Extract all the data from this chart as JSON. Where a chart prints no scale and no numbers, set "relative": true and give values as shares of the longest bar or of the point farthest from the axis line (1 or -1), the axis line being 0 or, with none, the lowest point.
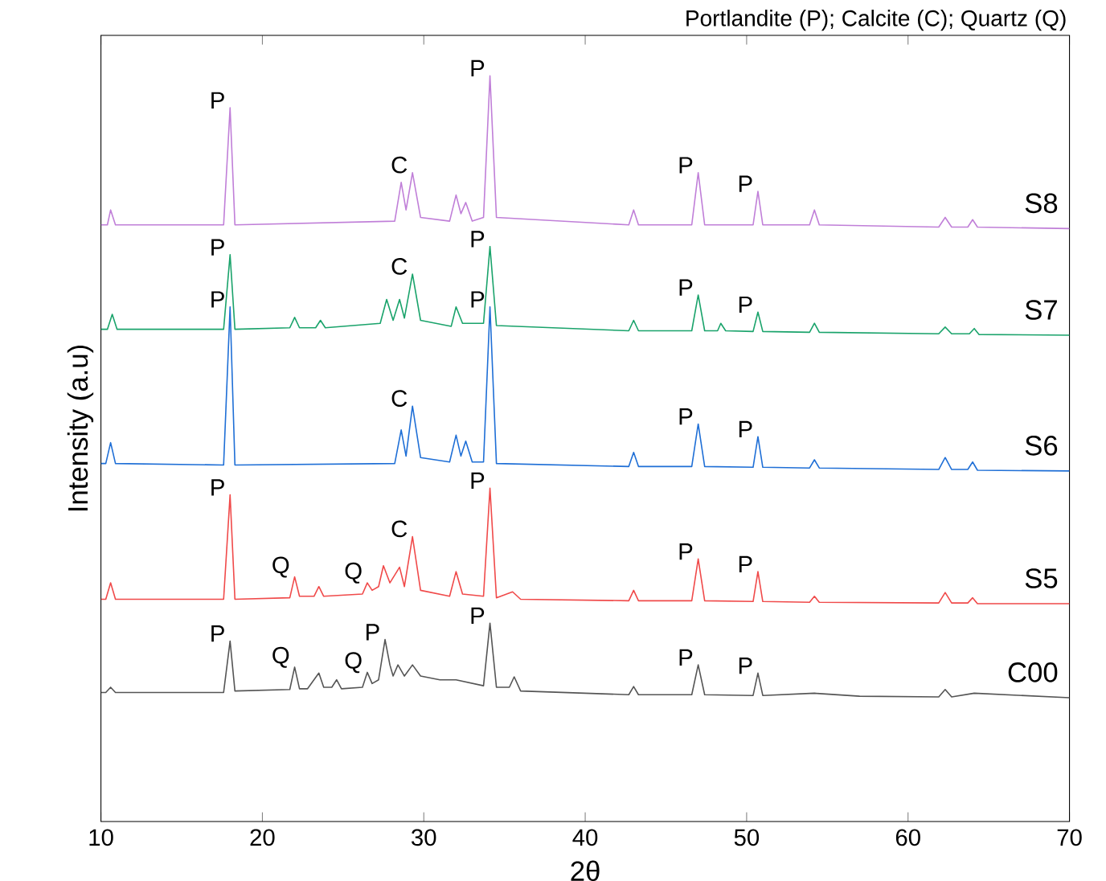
{
  "chart_data": {
    "type": "line",
    "title": "Portlandite (P); Calcite (C); Quartz (Q)",
    "xlabel": "2θ",
    "ylabel": "Intensity (a.u)",
    "relative": true,
    "legend": false,
    "grid": false,
    "marker": "none",
    "xlim": [
      10,
      70
    ],
    "xticks": [
      10,
      20,
      30,
      40,
      50,
      60,
      70
    ],
    "series": [
      {
        "name": "S8",
        "color": "#c07fd8",
        "x": [
          10,
          10.4,
          10.6,
          10.9,
          17.6,
          18,
          18.3,
          28.2,
          28.6,
          28.9,
          29.3,
          29.8,
          31.6,
          32,
          32.3,
          32.6,
          33,
          33.7,
          34.1,
          34.5,
          42.7,
          43,
          43.3,
          46.6,
          47,
          47.4,
          50.4,
          50.7,
          51,
          53.9,
          54.2,
          54.5,
          61.9,
          62.3,
          62.7,
          63.7,
          64,
          64.3,
          70
        ],
        "values": [
          0.8,
          0.8,
          0.82,
          0.8,
          0.8,
          0.957,
          0.8,
          0.805,
          0.857,
          0.82,
          0.87,
          0.81,
          0.805,
          0.84,
          0.815,
          0.83,
          0.805,
          0.81,
          1.0,
          0.81,
          0.8,
          0.82,
          0.8,
          0.8,
          0.87,
          0.8,
          0.8,
          0.845,
          0.8,
          0.8,
          0.82,
          0.8,
          0.797,
          0.81,
          0.797,
          0.797,
          0.807,
          0.797,
          0.795
        ]
      },
      {
        "name": "S7",
        "color": "#1aa36b",
        "x": [
          10,
          10.4,
          10.7,
          11,
          17.6,
          18,
          18.3,
          21.7,
          22,
          22.3,
          23.3,
          23.6,
          23.9,
          27.3,
          27.7,
          28.1,
          28.5,
          28.8,
          29.3,
          29.8,
          31.7,
          32,
          32.4,
          33.7,
          34.1,
          34.5,
          42.7,
          43,
          43.3,
          46.6,
          47,
          47.4,
          48.2,
          48.4,
          48.7,
          50.4,
          50.7,
          51,
          53.9,
          54.2,
          54.5,
          61.9,
          62.3,
          62.7,
          63.8,
          64.1,
          64.4,
          70
        ],
        "values": [
          0.66,
          0.66,
          0.68,
          0.66,
          0.66,
          0.76,
          0.66,
          0.662,
          0.676,
          0.662,
          0.662,
          0.672,
          0.662,
          0.668,
          0.7,
          0.672,
          0.7,
          0.675,
          0.734,
          0.672,
          0.664,
          0.69,
          0.668,
          0.668,
          0.771,
          0.665,
          0.658,
          0.672,
          0.658,
          0.658,
          0.706,
          0.658,
          0.658,
          0.668,
          0.658,
          0.657,
          0.683,
          0.657,
          0.656,
          0.668,
          0.656,
          0.654,
          0.663,
          0.654,
          0.654,
          0.661,
          0.653,
          0.652
        ]
      },
      {
        "name": "S6",
        "color": "#1f6fd6",
        "x": [
          10,
          10.3,
          10.6,
          10.9,
          17.6,
          18,
          18.3,
          28.2,
          28.6,
          28.9,
          29.3,
          29.8,
          31.6,
          32,
          32.3,
          32.6,
          33,
          33.7,
          34.1,
          34.5,
          42.7,
          43,
          43.3,
          46.6,
          47,
          47.4,
          50.4,
          50.7,
          51,
          53.9,
          54.2,
          54.5,
          61.9,
          62.3,
          62.7,
          63.7,
          64,
          64.3,
          70
        ],
        "values": [
          0.48,
          0.48,
          0.508,
          0.48,
          0.478,
          0.69,
          0.478,
          0.48,
          0.525,
          0.49,
          0.557,
          0.488,
          0.482,
          0.518,
          0.49,
          0.51,
          0.482,
          0.482,
          0.69,
          0.48,
          0.476,
          0.495,
          0.476,
          0.476,
          0.533,
          0.476,
          0.475,
          0.516,
          0.475,
          0.474,
          0.485,
          0.474,
          0.472,
          0.488,
          0.472,
          0.472,
          0.482,
          0.471,
          0.47
        ]
      },
      {
        "name": "S5",
        "color": "#f04a4a",
        "x": [
          10,
          10.3,
          10.6,
          10.9,
          17.6,
          18,
          18.3,
          21.7,
          22,
          22.3,
          23.2,
          23.5,
          23.8,
          26.2,
          26.5,
          26.8,
          27.2,
          27.5,
          27.9,
          28.5,
          28.8,
          29.3,
          29.8,
          31.6,
          32,
          32.4,
          33.7,
          34.1,
          34.5,
          35.5,
          36,
          42.7,
          43,
          43.3,
          46.6,
          47,
          47.4,
          50.4,
          50.7,
          51,
          53.9,
          54.2,
          54.5,
          61.9,
          62.3,
          62.7,
          63.7,
          64,
          64.3,
          70
        ],
        "values": [
          0.298,
          0.298,
          0.32,
          0.298,
          0.298,
          0.438,
          0.298,
          0.3,
          0.328,
          0.302,
          0.302,
          0.315,
          0.302,
          0.305,
          0.32,
          0.31,
          0.315,
          0.343,
          0.32,
          0.341,
          0.315,
          0.382,
          0.31,
          0.302,
          0.335,
          0.305,
          0.302,
          0.447,
          0.3,
          0.308,
          0.298,
          0.296,
          0.31,
          0.296,
          0.296,
          0.352,
          0.296,
          0.295,
          0.335,
          0.295,
          0.294,
          0.302,
          0.294,
          0.293,
          0.307,
          0.293,
          0.293,
          0.3,
          0.292,
          0.292
        ]
      },
      {
        "name": "C00",
        "color": "#555555",
        "x": [
          10,
          10.3,
          10.6,
          10.9,
          17.6,
          18,
          18.3,
          21.7,
          22,
          22.3,
          22.8,
          23.5,
          23.8,
          24.3,
          24.6,
          24.9,
          26.2,
          26.5,
          26.8,
          27.2,
          27.6,
          27.9,
          28.1,
          28.4,
          28.8,
          29.3,
          29.8,
          31,
          32,
          33.7,
          34.1,
          34.5,
          35.3,
          35.6,
          36,
          42.7,
          43,
          43.3,
          46.6,
          47,
          47.4,
          50.4,
          50.7,
          51,
          54.2,
          57,
          61.9,
          62.3,
          62.7,
          64.1,
          70
        ],
        "values": [
          0.173,
          0.173,
          0.18,
          0.173,
          0.173,
          0.242,
          0.175,
          0.177,
          0.207,
          0.178,
          0.178,
          0.199,
          0.18,
          0.18,
          0.19,
          0.178,
          0.18,
          0.2,
          0.185,
          0.19,
          0.244,
          0.21,
          0.195,
          0.21,
          0.195,
          0.21,
          0.195,
          0.19,
          0.19,
          0.182,
          0.266,
          0.18,
          0.18,
          0.194,
          0.175,
          0.17,
          0.181,
          0.17,
          0.17,
          0.21,
          0.17,
          0.169,
          0.199,
          0.169,
          0.172,
          0.168,
          0.167,
          0.177,
          0.167,
          0.172,
          0.166
        ]
      }
    ],
    "annotations": [
      {
        "text": "P",
        "x": 18,
        "y": 0.957
      },
      {
        "text": "C",
        "x": 29.3,
        "y": 0.87
      },
      {
        "text": "P",
        "x": 34.1,
        "y": 1.0
      },
      {
        "text": "P",
        "x": 47,
        "y": 0.87
      },
      {
        "text": "P",
        "x": 50.7,
        "y": 0.845
      },
      {
        "text": "P",
        "x": 18,
        "y": 0.76
      },
      {
        "text": "C",
        "x": 29.3,
        "y": 0.734
      },
      {
        "text": "P",
        "x": 34.1,
        "y": 0.771
      },
      {
        "text": "P",
        "x": 47,
        "y": 0.706
      },
      {
        "text": "P",
        "x": 50.7,
        "y": 0.683
      },
      {
        "text": "P",
        "x": 18,
        "y": 0.69
      },
      {
        "text": "C",
        "x": 29.3,
        "y": 0.557
      },
      {
        "text": "P",
        "x": 34.1,
        "y": 0.69
      },
      {
        "text": "P",
        "x": 47,
        "y": 0.533
      },
      {
        "text": "P",
        "x": 50.7,
        "y": 0.516
      },
      {
        "text": "P",
        "x": 18,
        "y": 0.438
      },
      {
        "text": "Q",
        "x": 22,
        "y": 0.328
      },
      {
        "text": "Q",
        "x": 26.5,
        "y": 0.32
      },
      {
        "text": "C",
        "x": 29.3,
        "y": 0.382
      },
      {
        "text": "P",
        "x": 34.1,
        "y": 0.447
      },
      {
        "text": "P",
        "x": 47,
        "y": 0.352
      },
      {
        "text": "P",
        "x": 50.7,
        "y": 0.335
      },
      {
        "text": "P",
        "x": 18,
        "y": 0.242
      },
      {
        "text": "Q",
        "x": 22,
        "y": 0.207
      },
      {
        "text": "Q",
        "x": 26.5,
        "y": 0.2
      },
      {
        "text": "P",
        "x": 27.6,
        "y": 0.244
      },
      {
        "text": "P",
        "x": 34.1,
        "y": 0.266
      },
      {
        "text": "P",
        "x": 47,
        "y": 0.21
      },
      {
        "text": "P",
        "x": 50.7,
        "y": 0.199
      }
    ]
  }
}
